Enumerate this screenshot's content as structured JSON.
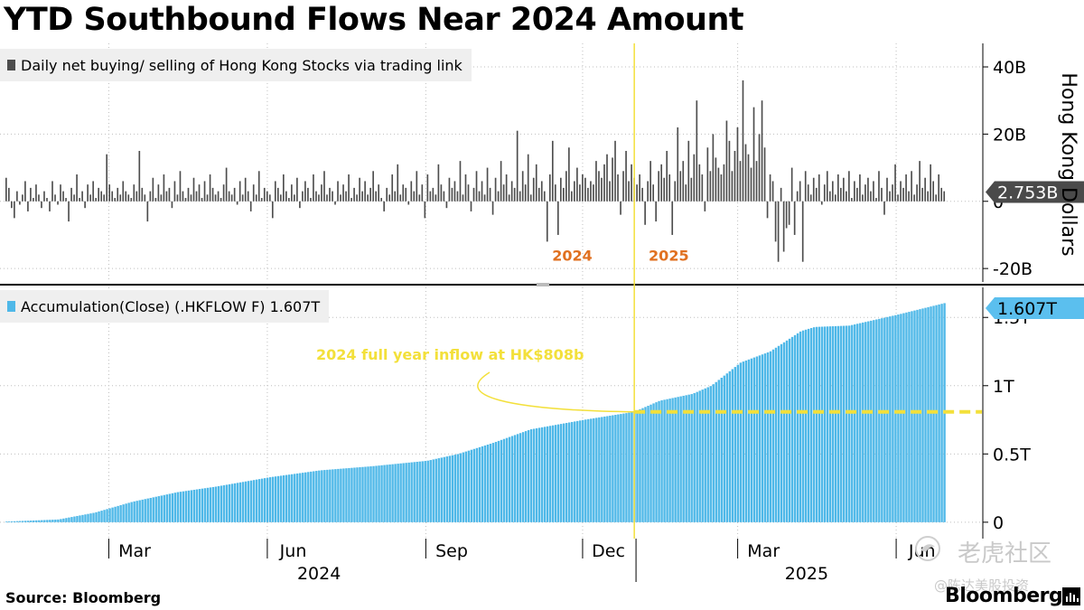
{
  "title": "YTD Southbound Flows Near 2024 Amount",
  "source": "Source:  Bloomberg",
  "brand": "Bloomberg",
  "watermark": {
    "main": "老虎社区",
    "sub": "@陈达美股投资"
  },
  "colors": {
    "daily": "#4d4d4d",
    "accum": "#4fb8e8",
    "accent": "#f3e03b",
    "year_label": "#e07020",
    "grid": "#bfbfbf",
    "flag_dark": "#4a4a4a",
    "flag_blue": "#5bbfee"
  },
  "chart_data": [
    {
      "type": "bar",
      "legend": "Daily net buying/ selling of Hong Kong Stocks via trading link",
      "ylabel": "Hong Kong Dollars",
      "unit": "HK$ billion",
      "ylim": [
        -24,
        47
      ],
      "yticks": [
        40,
        20,
        0,
        -20
      ],
      "ytick_labels": [
        "40B",
        "20B",
        "0",
        "-20B"
      ],
      "last_value_label": "2.753B",
      "last_value": 2.753,
      "annotations": [
        {
          "text": "2024",
          "x": "2024-11-25",
          "y": -16
        },
        {
          "text": "2025",
          "x": "2025-01-20",
          "y": -16
        }
      ],
      "values": [
        7,
        4,
        -2,
        -5,
        3,
        -1,
        2,
        6,
        -3,
        4,
        1,
        5,
        2,
        -2,
        3,
        1,
        -3,
        6,
        2,
        -1,
        5,
        3,
        1,
        -6,
        4,
        2,
        8,
        1,
        3,
        -2,
        5,
        2,
        6,
        1,
        4,
        3,
        2,
        14,
        5,
        3,
        1,
        4,
        2,
        6,
        3,
        2,
        1,
        5,
        3,
        15,
        4,
        2,
        -6,
        3,
        7,
        1,
        5,
        2,
        8,
        3,
        4,
        -2,
        6,
        2,
        9,
        3,
        1,
        4,
        2,
        7,
        3,
        5,
        1,
        6,
        2,
        8,
        4,
        2,
        3,
        1,
        5,
        10,
        3,
        2,
        4,
        -1,
        6,
        2,
        7,
        3,
        -3,
        5,
        2,
        9,
        1,
        4,
        3,
        2,
        -5,
        6,
        4,
        2,
        8,
        3,
        1,
        5,
        2,
        7,
        -2,
        3,
        6,
        4,
        1,
        8,
        3,
        2,
        5,
        9,
        2,
        4,
        3,
        -1,
        6,
        2,
        5,
        3,
        8,
        1,
        4,
        2,
        7,
        3,
        6,
        2,
        4,
        9,
        3,
        5,
        1,
        -3,
        4,
        2,
        8,
        3,
        11,
        2,
        5,
        4,
        -1,
        6,
        3,
        9,
        2,
        5,
        -5,
        8,
        3,
        4,
        2,
        11,
        5,
        3,
        -2,
        7,
        4,
        6,
        3,
        12,
        2,
        8,
        5,
        -3,
        4,
        9,
        3,
        6,
        2,
        10,
        4,
        -4,
        7,
        3,
        12,
        5,
        8,
        2,
        6,
        4,
        21,
        3,
        9,
        5,
        14,
        2,
        7,
        11,
        4,
        6,
        3,
        -12,
        8,
        18,
        5,
        -10,
        7,
        4,
        9,
        16,
        3,
        6,
        10,
        5,
        8,
        7,
        4,
        6,
        5,
        12,
        9,
        7,
        11,
        14,
        6,
        13,
        18,
        8,
        -4,
        9,
        15,
        6,
        11,
        7,
        5,
        8,
        4,
        -7,
        6,
        12,
        5,
        -6,
        9,
        11,
        7,
        15,
        8,
        -10,
        6,
        22,
        9,
        12,
        5,
        18,
        7,
        14,
        30,
        11,
        8,
        -3,
        16,
        9,
        20,
        13,
        10,
        8,
        11,
        24,
        18,
        9,
        15,
        22,
        12,
        36,
        17,
        14,
        10,
        28,
        12,
        20,
        30,
        16,
        -5,
        8,
        6,
        -12,
        -18,
        4,
        -15,
        -8,
        -7,
        10,
        -10,
        3,
        6,
        -18,
        9,
        5,
        2,
        7,
        4,
        8,
        -1,
        5,
        9,
        3,
        6,
        2,
        8,
        4,
        7,
        3,
        9,
        1,
        6,
        4,
        8,
        2,
        5,
        7,
        3,
        6,
        1,
        9,
        4,
        -4,
        7,
        3,
        5,
        11,
        2,
        6,
        4,
        8,
        3,
        9,
        2,
        5,
        12,
        4,
        7,
        3,
        11,
        6,
        2,
        8,
        4,
        3
      ]
    },
    {
      "type": "area",
      "legend": "Accumulation(Close) (.HKFLOW F) 1.607T",
      "unit": "HK$ trillion",
      "ylim": [
        -0.12,
        1.72
      ],
      "yticks": [
        0,
        0.5,
        1,
        1.5
      ],
      "ytick_labels": [
        "0",
        "0.5T",
        "1T",
        "1.5T"
      ],
      "last_value_label": "1.607T",
      "last_value": 1.607,
      "reference_line": {
        "value": 0.808,
        "from": "2024-12-31",
        "label": "2024 full year inflow at HK$808b"
      },
      "series_keypoints": [
        [
          "2024-01-02",
          0.005
        ],
        [
          "2024-02-01",
          0.02
        ],
        [
          "2024-02-22",
          0.07
        ],
        [
          "2024-03-15",
          0.15
        ],
        [
          "2024-04-10",
          0.22
        ],
        [
          "2024-05-02",
          0.26
        ],
        [
          "2024-06-03",
          0.33
        ],
        [
          "2024-07-02",
          0.38
        ],
        [
          "2024-08-01",
          0.41
        ],
        [
          "2024-09-02",
          0.45
        ],
        [
          "2024-09-20",
          0.5
        ],
        [
          "2024-10-10",
          0.58
        ],
        [
          "2024-11-01",
          0.68
        ],
        [
          "2024-12-02",
          0.75
        ],
        [
          "2024-12-31",
          0.808
        ],
        [
          "2025-01-15",
          0.89
        ],
        [
          "2025-02-03",
          0.94
        ],
        [
          "2025-02-14",
          1.0
        ],
        [
          "2025-03-03",
          1.17
        ],
        [
          "2025-03-20",
          1.25
        ],
        [
          "2025-04-07",
          1.4
        ],
        [
          "2025-04-15",
          1.43
        ],
        [
          "2025-05-05",
          1.44
        ],
        [
          "2025-06-02",
          1.52
        ],
        [
          "2025-06-30",
          1.607
        ]
      ]
    }
  ],
  "x_axis": {
    "start": "2024-01-01",
    "end": "2025-07-15",
    "data_end": "2025-06-30",
    "divider": "2024-12-31",
    "months": [
      {
        "label": "Mar",
        "tick": "2024-03-01",
        "center": "2024-03-16"
      },
      {
        "label": "Jun",
        "tick": "2024-06-01",
        "center": "2024-06-16"
      },
      {
        "label": "Sep",
        "tick": "2024-09-01",
        "center": "2024-09-16"
      },
      {
        "label": "Dec",
        "tick": "2024-12-01",
        "center": "2024-12-16"
      },
      {
        "label": "Mar",
        "tick": "2025-03-01",
        "center": "2025-03-16"
      },
      {
        "label": "Jun",
        "tick": "2025-06-01",
        "center": "2025-06-16"
      }
    ],
    "years": [
      {
        "label": "2024",
        "center": "2024-07-01",
        "tick": "2024-01-01"
      },
      {
        "label": "2025",
        "center": "2025-04-10",
        "tick": "2025-01-01"
      }
    ]
  }
}
